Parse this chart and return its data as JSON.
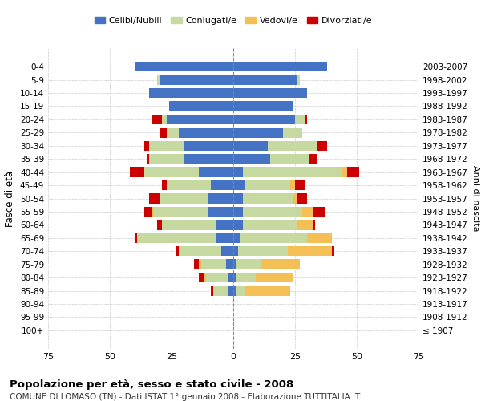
{
  "age_groups": [
    "100+",
    "95-99",
    "90-94",
    "85-89",
    "80-84",
    "75-79",
    "70-74",
    "65-69",
    "60-64",
    "55-59",
    "50-54",
    "45-49",
    "40-44",
    "35-39",
    "30-34",
    "25-29",
    "20-24",
    "15-19",
    "10-14",
    "5-9",
    "0-4"
  ],
  "birth_years": [
    "≤ 1907",
    "1908-1912",
    "1913-1917",
    "1918-1922",
    "1923-1927",
    "1928-1932",
    "1933-1937",
    "1938-1942",
    "1943-1947",
    "1948-1952",
    "1953-1957",
    "1958-1962",
    "1963-1967",
    "1968-1972",
    "1973-1977",
    "1978-1982",
    "1983-1987",
    "1988-1992",
    "1993-1997",
    "1998-2002",
    "2003-2007"
  ],
  "male": {
    "celibi": [
      0,
      0,
      0,
      2,
      2,
      3,
      5,
      7,
      7,
      10,
      10,
      9,
      14,
      20,
      20,
      22,
      27,
      26,
      34,
      30,
      40
    ],
    "coniugati": [
      0,
      0,
      0,
      6,
      9,
      10,
      17,
      32,
      22,
      22,
      20,
      18,
      22,
      14,
      14,
      5,
      2,
      0,
      0,
      1,
      0
    ],
    "vedovi": [
      0,
      0,
      0,
      0,
      1,
      1,
      0,
      0,
      0,
      1,
      0,
      0,
      0,
      0,
      0,
      0,
      0,
      0,
      0,
      0,
      0
    ],
    "divorziati": [
      0,
      0,
      0,
      1,
      2,
      2,
      1,
      1,
      2,
      3,
      4,
      2,
      6,
      1,
      2,
      3,
      4,
      0,
      0,
      0,
      0
    ]
  },
  "female": {
    "nubili": [
      0,
      0,
      0,
      1,
      1,
      1,
      2,
      3,
      4,
      4,
      4,
      5,
      4,
      15,
      14,
      20,
      25,
      24,
      30,
      26,
      38
    ],
    "coniugate": [
      0,
      0,
      0,
      4,
      8,
      10,
      20,
      27,
      22,
      24,
      20,
      18,
      40,
      16,
      20,
      8,
      4,
      0,
      0,
      1,
      0
    ],
    "vedove": [
      0,
      0,
      0,
      18,
      15,
      16,
      18,
      10,
      6,
      4,
      2,
      2,
      2,
      0,
      0,
      0,
      0,
      0,
      0,
      0,
      0
    ],
    "divorziate": [
      0,
      0,
      0,
      0,
      0,
      0,
      1,
      0,
      1,
      5,
      4,
      4,
      5,
      3,
      4,
      0,
      1,
      0,
      0,
      0,
      0
    ]
  },
  "colors": {
    "celibi": "#4472c4",
    "coniugati": "#c5d9a0",
    "vedovi": "#f4c056",
    "divorziati": "#cc0000"
  },
  "xlim": 75,
  "title": "Popolazione per età, sesso e stato civile - 2008",
  "subtitle": "COMUNE DI LOMASO (TN) - Dati ISTAT 1° gennaio 2008 - Elaborazione TUTTITALIA.IT",
  "ylabel_left": "Fasce di età",
  "ylabel_right": "Anni di nascita",
  "legend_labels": [
    "Celibi/Nubili",
    "Coniugati/e",
    "Vedovi/e",
    "Divorziati/e"
  ],
  "background_color": "#ffffff",
  "grid_color": "#cccccc"
}
